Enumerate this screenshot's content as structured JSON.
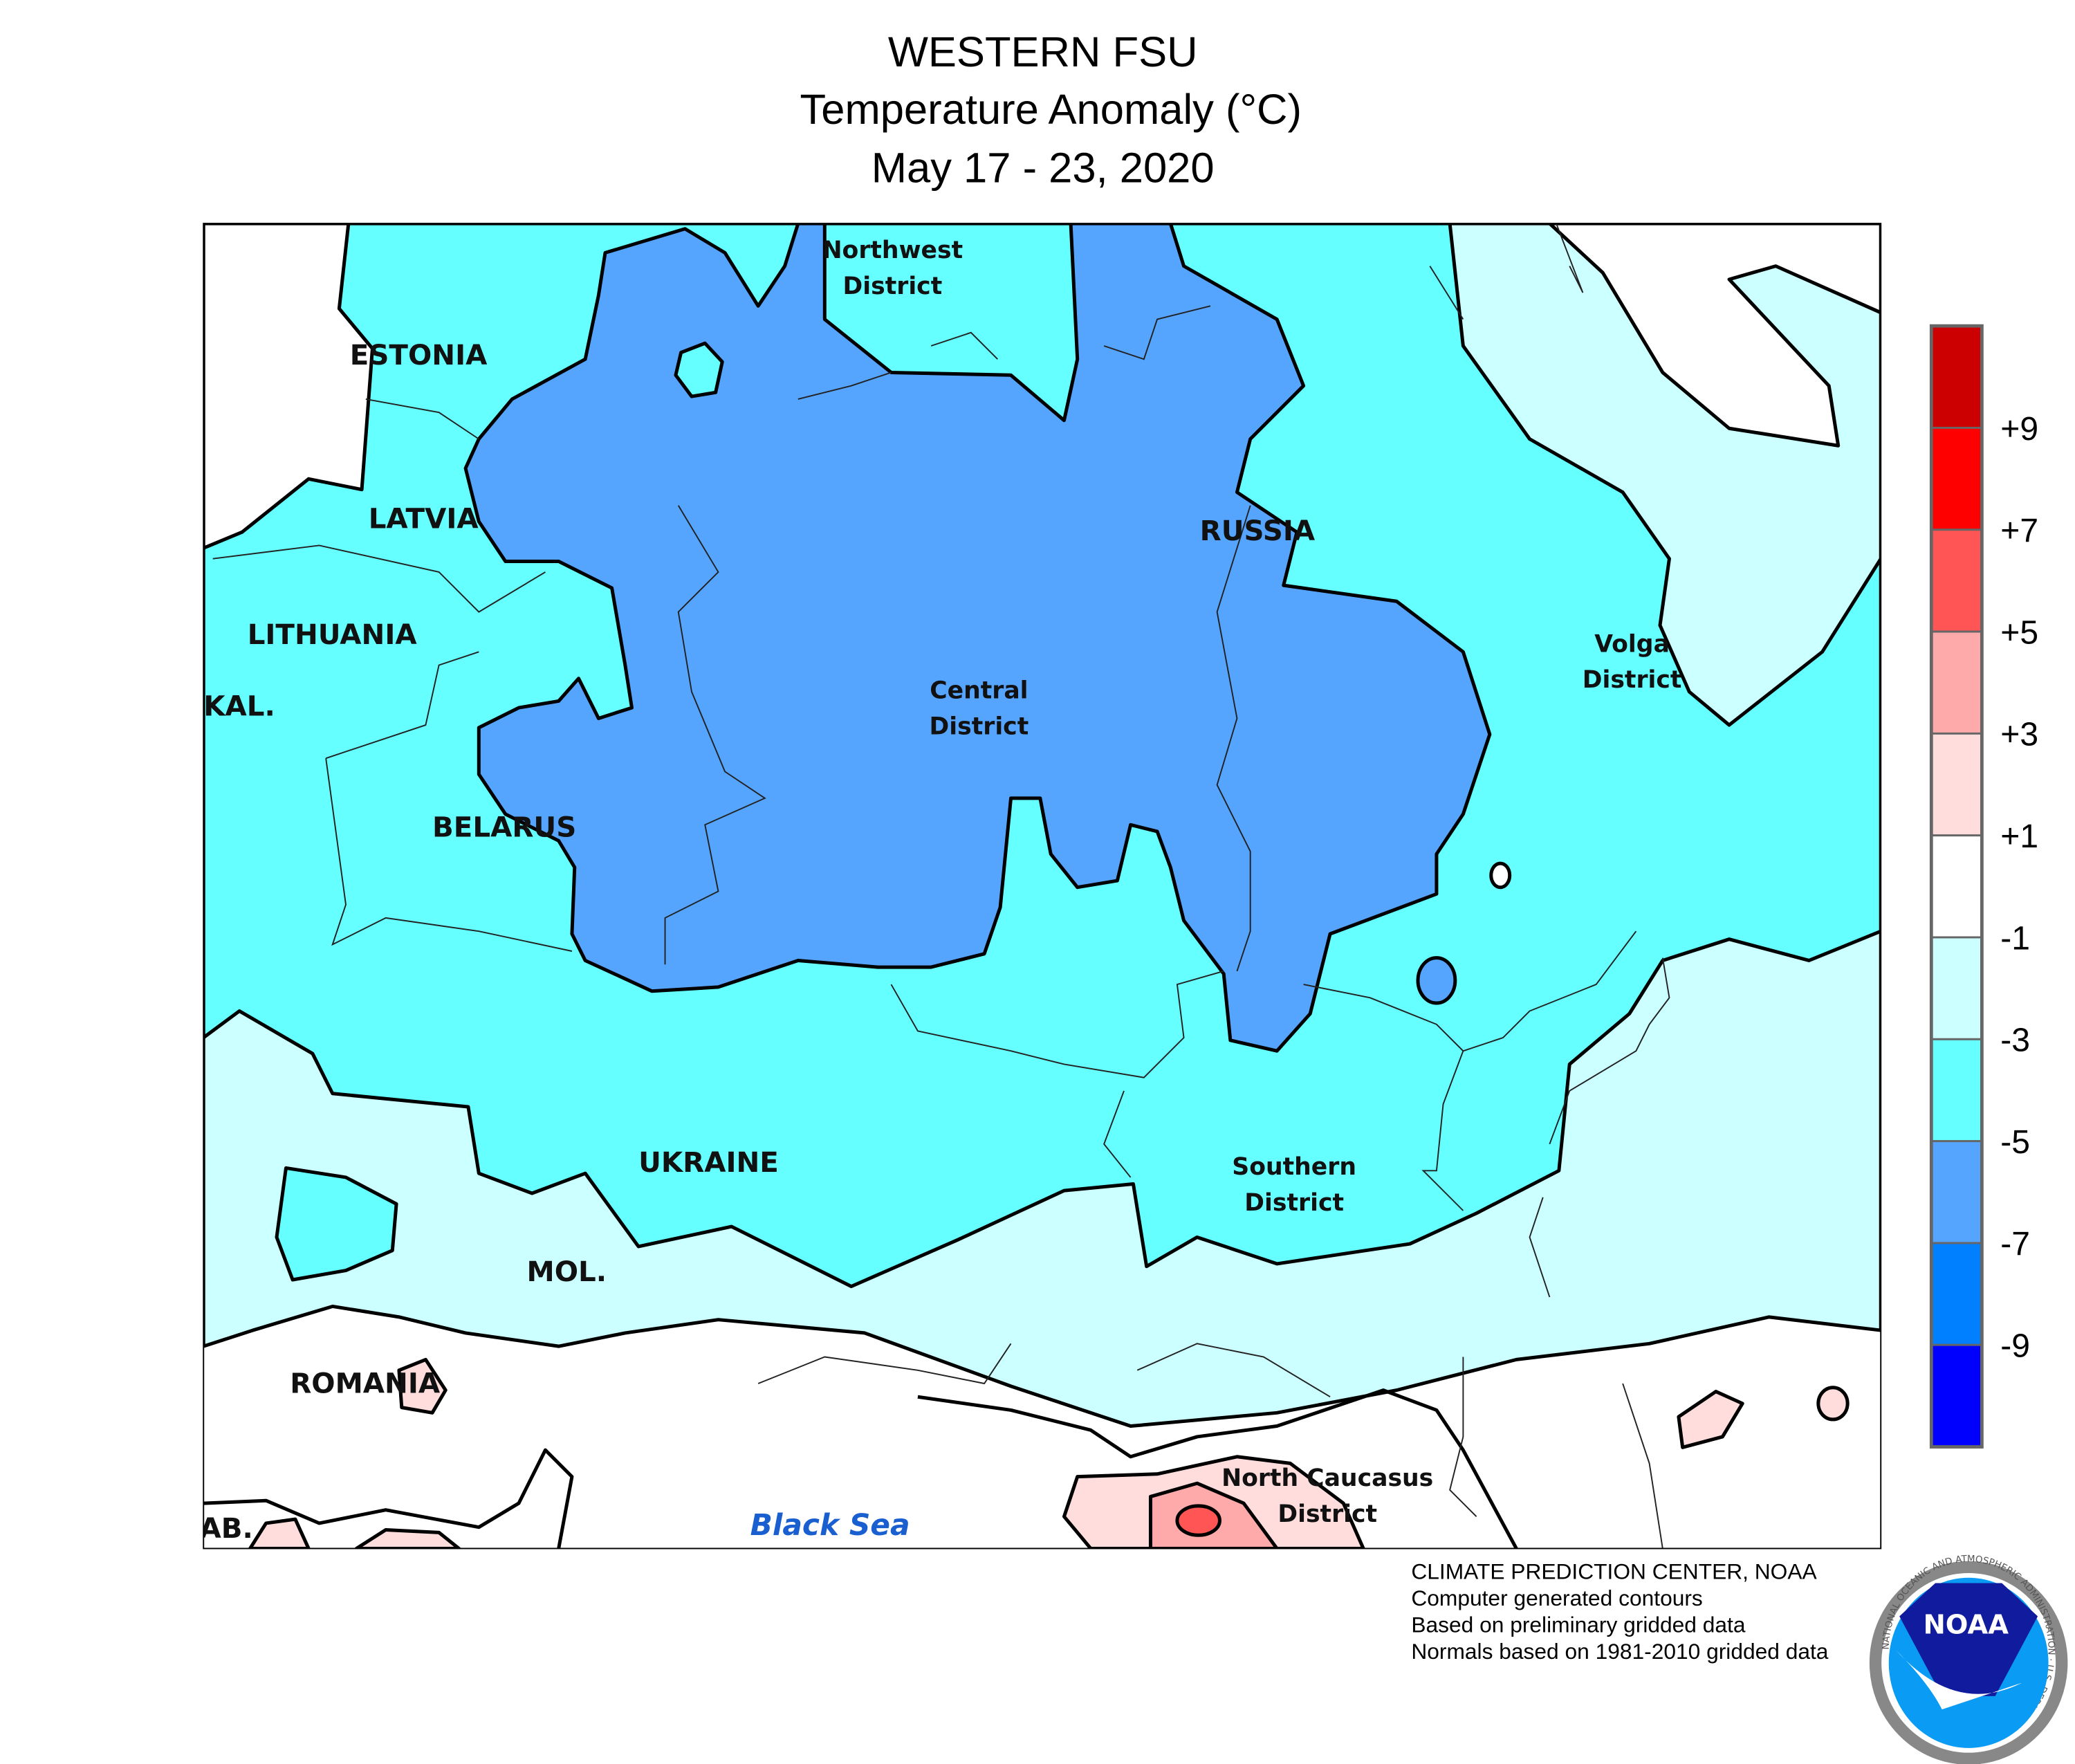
{
  "title": {
    "line1": "WESTERN FSU",
    "line2": "Temperature Anomaly (°C)",
    "line3": "May 17 - 23, 2020"
  },
  "map": {
    "colors": {
      "white": "#FFFFFF",
      "light_cyan": "#CCFFFF",
      "cyan": "#66FFFF",
      "blue": "#55A5FF",
      "pink": "#FFDDDD",
      "light_red": "#FFAAAA",
      "red": "#FF5555"
    },
    "labels": {
      "estonia": "ESTONIA",
      "latvia": "LATVIA",
      "lithuania": "LITHUANIA",
      "kal": "KAL.",
      "belarus": "BELARUS",
      "ukraine": "UKRAINE",
      "mol": "MOL.",
      "romania": "ROMANIA",
      "ab": "AB.",
      "russia": "RUSSIA",
      "northwest_1": "Northwest",
      "northwest_2": "District",
      "central_1": "Central",
      "central_2": "District",
      "volga_1": "Volga",
      "volga_2": "District",
      "southern_1": "Southern",
      "southern_2": "District",
      "ncaucasus_1": "North Caucasus",
      "ncaucasus_2": "District",
      "black_sea": "Black Sea"
    }
  },
  "legend": {
    "unit": "°C",
    "bins": [
      {
        "color": "#CC0000",
        "range": "> +9"
      },
      {
        "color": "#FF0000",
        "range": "+7 to +9"
      },
      {
        "color": "#FF5555",
        "range": "+5 to +7"
      },
      {
        "color": "#FFAAAA",
        "range": "+3 to +5"
      },
      {
        "color": "#FFDDDD",
        "range": "+1 to +3"
      },
      {
        "color": "#FFFFFF",
        "range": "-1 to +1"
      },
      {
        "color": "#CCFFFF",
        "range": "-3 to -1"
      },
      {
        "color": "#66FFFF",
        "range": "-5 to -3"
      },
      {
        "color": "#55A5FF",
        "range": "-7 to -5"
      },
      {
        "color": "#0080FF",
        "range": "-9 to -7"
      },
      {
        "color": "#0000FF",
        "range": "< -9"
      }
    ],
    "ticks": [
      "+9",
      "+7",
      "+5",
      "+3",
      "+1",
      "-1",
      "-3",
      "-5",
      "-7",
      "-9"
    ]
  },
  "credits": {
    "line1": "CLIMATE PREDICTION CENTER, NOAA",
    "line2": "Computer generated contours",
    "line3": "Based on preliminary gridded data",
    "line4": "Normals based on 1981-2010 gridded data"
  },
  "logo": {
    "text": "NOAA",
    "ring_text": "NATIONAL OCEANIC AND ATMOSPHERIC ADMINISTRATION · U.S. DEPARTMENT OF COMMERCE"
  }
}
